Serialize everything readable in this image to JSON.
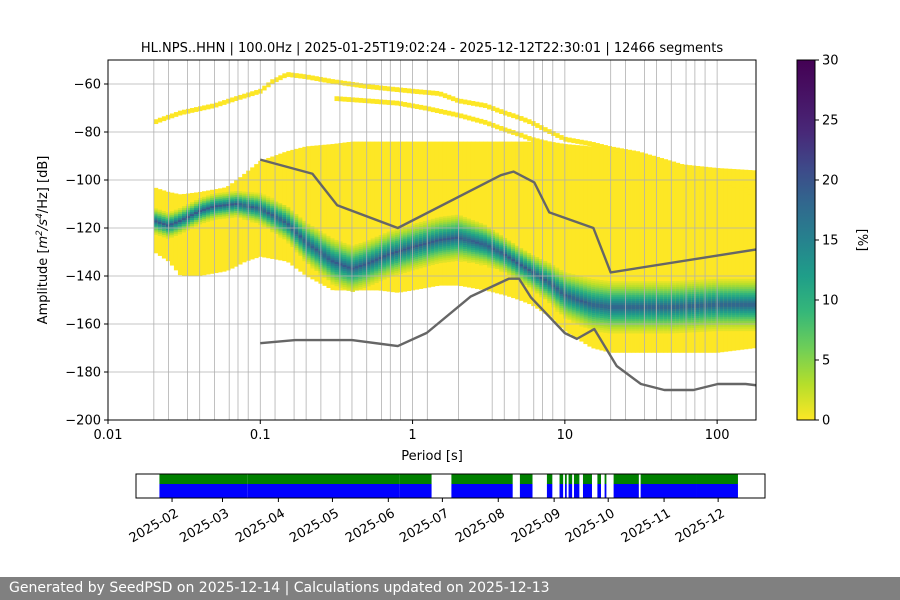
{
  "chart_data": [
    {
      "type": "heatmap",
      "title": "HL.NPS..HHN | 100.0Hz | 2025-01-25T19:02:24 - 2025-12-12T22:30:01 | 12466 segments",
      "xlabel": "Period [s]",
      "ylabel_parts": {
        "prefix": "Amplitude [",
        "m": "m",
        "exp1": "2",
        "slash_s": "/s",
        "exp2": "4",
        "suffix": "/Hz] [dB]"
      },
      "x_scale": "log",
      "xlim": [
        0.01,
        180
      ],
      "ylim": [
        -200,
        -50
      ],
      "x_ticks": [
        {
          "value": 0.01,
          "label": "0.01"
        },
        {
          "value": 0.1,
          "label": "0.1"
        },
        {
          "value": 1,
          "label": "1"
        },
        {
          "value": 10,
          "label": "10"
        },
        {
          "value": 100,
          "label": "100"
        }
      ],
      "y_ticks": [
        {
          "value": -60,
          "label": "−60"
        },
        {
          "value": -80,
          "label": "−80"
        },
        {
          "value": -100,
          "label": "−100"
        },
        {
          "value": -120,
          "label": "−120"
        },
        {
          "value": -140,
          "label": "−140"
        },
        {
          "value": -160,
          "label": "−160"
        },
        {
          "value": -180,
          "label": "−180"
        },
        {
          "value": -200,
          "label": "−200"
        }
      ],
      "grid": true,
      "vertical_gridlines": [
        0.02,
        0.025,
        0.0333,
        0.04,
        0.05,
        0.0625,
        0.0714,
        0.0833,
        0.1,
        0.125,
        0.1667,
        0.2,
        0.25,
        0.3333,
        0.4,
        0.5,
        0.625,
        0.7143,
        0.8333,
        1,
        1.25,
        2,
        3.333,
        4,
        5,
        6.25,
        7.143,
        8.333,
        10,
        20,
        25,
        33.33,
        40,
        50,
        62.5,
        71.43,
        83.33,
        100
      ],
      "horizontal_gridlines": [
        -60,
        -80,
        -100,
        -120,
        -140,
        -160,
        -180
      ],
      "density_bands": [
        {
          "name": "upper-fringe",
          "period": [
            0.02,
            0.022,
            0.03,
            0.05,
            0.07,
            0.1,
            0.12,
            0.15,
            0.2,
            0.3,
            0.5,
            0.7,
            1,
            1.5,
            2,
            3,
            4,
            5,
            6,
            8,
            10,
            15,
            20,
            30,
            50,
            100,
            180
          ],
          "top_db": [
            -75,
            -74,
            -71,
            -68,
            -65,
            -62,
            -58,
            -55,
            -56,
            -58,
            -60,
            -61,
            -62,
            -63,
            -66,
            -68,
            -71,
            -73,
            -75,
            -79,
            -82,
            -84,
            -86,
            -88,
            -92,
            -98,
            -105
          ],
          "thickness_db": [
            2,
            2,
            2,
            2,
            2,
            2,
            2,
            2,
            2,
            2,
            2,
            2,
            2,
            2,
            2,
            2,
            2,
            2,
            2,
            2,
            2,
            2,
            2,
            2,
            2,
            2,
            2
          ]
        },
        {
          "name": "upper-fringe-2",
          "period": [
            0.3,
            0.5,
            0.8,
            1.2,
            2,
            3,
            4,
            5,
            6,
            8,
            10,
            12
          ],
          "top_db": [
            -65,
            -66,
            -67,
            -69,
            -72,
            -75,
            -78,
            -80,
            -82,
            -84,
            -86,
            -87
          ],
          "thickness_db": [
            2,
            2,
            2,
            2,
            2,
            2,
            2,
            2,
            2,
            2,
            2,
            2
          ]
        },
        {
          "name": "main-envelope",
          "period": [
            0.02,
            0.025,
            0.03,
            0.04,
            0.06,
            0.07,
            0.08,
            0.1,
            0.15,
            0.2,
            0.3,
            0.4,
            0.5,
            0.6,
            0.8,
            1,
            1.5,
            2,
            3,
            4,
            5,
            6,
            8,
            10,
            15,
            20,
            30,
            50,
            100,
            180
          ],
          "top_db": [
            -103,
            -105,
            -106,
            -105,
            -103,
            -100,
            -97,
            -92,
            -88,
            -86,
            -85,
            -84,
            -84,
            -84,
            -84,
            -84,
            -84,
            -84,
            -84,
            -84,
            -84,
            -84,
            -84,
            -85,
            -86,
            -86,
            -90,
            -93,
            -95,
            -96
          ],
          "bottom_db": [
            -130,
            -134,
            -140,
            -140,
            -138,
            -136,
            -134,
            -132,
            -134,
            -140,
            -146,
            -146,
            -146,
            -146,
            -147,
            -146,
            -144,
            -144,
            -146,
            -148,
            -150,
            -152,
            -157,
            -163,
            -170,
            -172,
            -172,
            -172,
            -172,
            -170
          ]
        },
        {
          "name": "core-ridge",
          "period": [
            0.02,
            0.025,
            0.03,
            0.04,
            0.05,
            0.07,
            0.1,
            0.15,
            0.2,
            0.3,
            0.4,
            0.5,
            0.7,
            1,
            1.5,
            2,
            3,
            4,
            5,
            6,
            8,
            10,
            15,
            20,
            30,
            50,
            100,
            180
          ],
          "center_db": [
            -117,
            -119,
            -117,
            -113,
            -111,
            -110,
            -112,
            -118,
            -126,
            -134,
            -137,
            -135,
            -131,
            -128,
            -125,
            -124,
            -127,
            -131,
            -135,
            -138,
            -143,
            -148,
            -152,
            -153,
            -153,
            -153,
            -152,
            -152
          ],
          "halfwidth_db": [
            5,
            5,
            5,
            5,
            5,
            5,
            6,
            7,
            8,
            9,
            9,
            9,
            9,
            9,
            9,
            9,
            8,
            7,
            7,
            7,
            8,
            9,
            10,
            10,
            10,
            10,
            10,
            10
          ]
        }
      ],
      "reference_curves": [
        {
          "name": "NHNM",
          "period": [
            0.1,
            0.22,
            0.32,
            0.8,
            3.8,
            4.6,
            6.3,
            7.9,
            15.4,
            20,
            354.8
          ],
          "db": [
            -91.5,
            -97.4,
            -110.5,
            -120,
            -98,
            -96.5,
            -101,
            -113.5,
            -120,
            -138.5,
            -126
          ]
        },
        {
          "name": "NLNM",
          "period": [
            0.1,
            0.17,
            0.4,
            0.8,
            1.24,
            2.4,
            4.3,
            5,
            6,
            10,
            12,
            15.6,
            21.9,
            31.6,
            45,
            70,
            101,
            154,
            328
          ],
          "db": [
            -168,
            -166.7,
            -166.7,
            -169.2,
            -163.7,
            -148.6,
            -141.1,
            -141.1,
            -149,
            -163.8,
            -166.2,
            -162.1,
            -177.5,
            -185,
            -187.5,
            -187.5,
            -185,
            -185,
            -187.5
          ]
        }
      ]
    },
    {
      "type": "heatmap",
      "name": "colorbar",
      "label": "[%]",
      "range": [
        0,
        30
      ],
      "ticks": [
        {
          "value": 0,
          "label": "0"
        },
        {
          "value": 5,
          "label": "5"
        },
        {
          "value": 10,
          "label": "10"
        },
        {
          "value": 15,
          "label": "15"
        },
        {
          "value": 20,
          "label": "20"
        },
        {
          "value": 25,
          "label": "25"
        },
        {
          "value": 30,
          "label": "30"
        }
      ]
    },
    {
      "type": "bar",
      "name": "data-coverage",
      "xlim": [
        "2025-01-12",
        "2025-12-27"
      ],
      "x_ticks": [
        "2025-02",
        "2025-03",
        "2025-04",
        "2025-05",
        "2025-06",
        "2025-07",
        "2025-08",
        "2025-09",
        "2025-10",
        "2025-11",
        "2025-12"
      ],
      "x_tick_dates": [
        "2025-02-01",
        "2025-03-01",
        "2025-04-01",
        "2025-05-01",
        "2025-06-01",
        "2025-07-01",
        "2025-08-01",
        "2025-09-01",
        "2025-10-01",
        "2025-11-01",
        "2025-12-01"
      ],
      "available_data": [
        [
          "2025-01-25",
          "2025-03-15"
        ],
        [
          "2025-03-15",
          "2025-06-07"
        ],
        [
          "2025-06-07",
          "2025-06-25"
        ],
        [
          "2025-07-06",
          "2025-08-09"
        ],
        [
          "2025-08-13",
          "2025-08-20"
        ],
        [
          "2025-08-28",
          "2025-08-31"
        ],
        [
          "2025-09-04",
          "2025-09-06"
        ],
        [
          "2025-09-07",
          "2025-09-08"
        ],
        [
          "2025-09-09",
          "2025-09-11"
        ],
        [
          "2025-09-12",
          "2025-09-15"
        ],
        [
          "2025-09-17",
          "2025-09-22"
        ],
        [
          "2025-09-25",
          "2025-09-27"
        ],
        [
          "2025-09-29",
          "2025-09-30"
        ],
        [
          "2025-10-04",
          "2025-10-18"
        ],
        [
          "2025-10-19",
          "2025-11-19"
        ],
        [
          "2025-11-19",
          "2025-12-12"
        ]
      ],
      "colors": {
        "top": "#008000",
        "bottom": "#0000ff"
      }
    }
  ],
  "colors": {
    "nhnm_nlnm": "#666666",
    "grid": "#b0b0b0",
    "footer_bg": "#808080"
  },
  "colormap": "viridis",
  "footer": "Generated by SeedPSD on 2025-12-14 | Calculations updated on 2025-12-13"
}
